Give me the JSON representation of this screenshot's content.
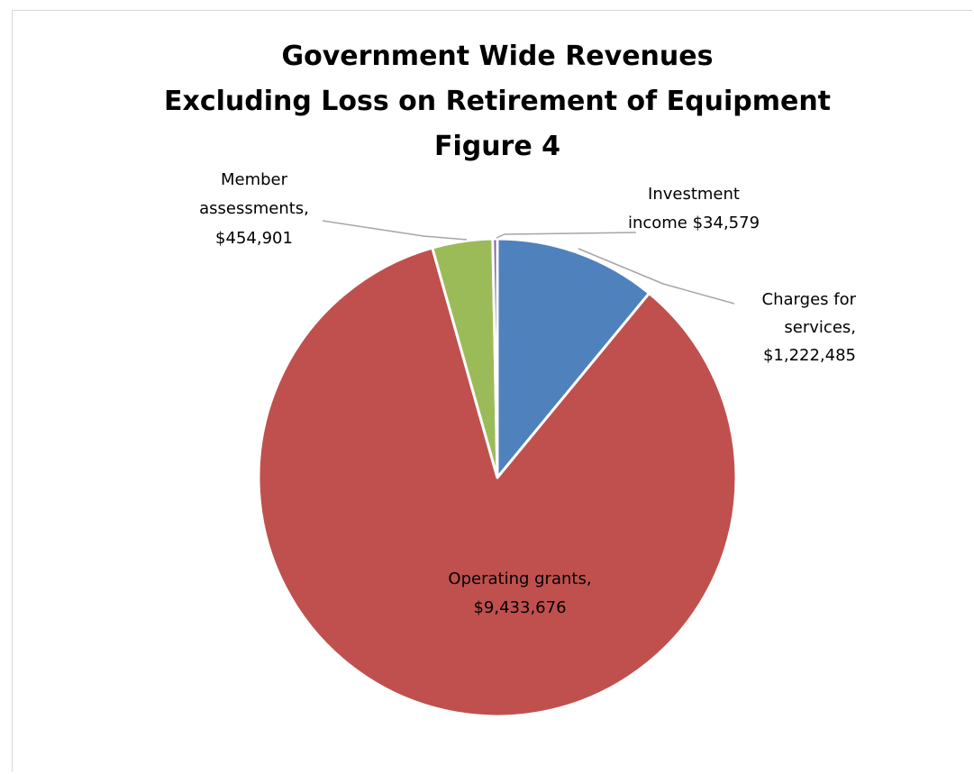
{
  "chart_data": {
    "type": "pie",
    "title": [
      "Government Wide Revenues",
      "Excluding Loss on Retirement of Equipment",
      "Figure 4"
    ],
    "slices": [
      {
        "name": "Charges for services",
        "value": 1222485,
        "label": [
          "Charges for",
          "services,",
          "$1,222,485"
        ],
        "color": "#4f81bd"
      },
      {
        "name": "Operating grants",
        "value": 9433676,
        "label": [
          "Operating grants,",
          "$9,433,676"
        ],
        "color": "#c0504d"
      },
      {
        "name": "Member assessments",
        "value": 454901,
        "label": [
          "Member",
          "assessments,",
          "$454,901"
        ],
        "color": "#9bbb59"
      },
      {
        "name": "Investment income",
        "value": 34579,
        "label": [
          "Investment",
          "income $34,579"
        ],
        "color": "#8064a2"
      }
    ],
    "start_angle_deg": 0,
    "direction": "clockwise",
    "legend": "none"
  }
}
